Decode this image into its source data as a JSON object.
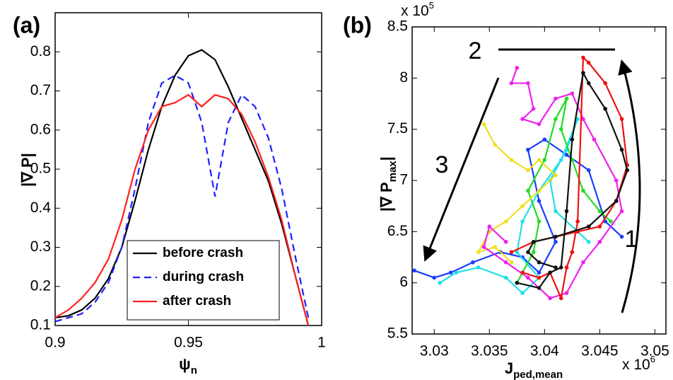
{
  "chart_data": [
    {
      "type": "line",
      "panel_label": "(a)",
      "xlabel": [
        "ψ",
        "n"
      ],
      "ylabel": "|∇ P|",
      "xlim": [
        0.9,
        1
      ],
      "ylim": [
        0.1,
        0.9
      ],
      "xticks": [
        0.9,
        0.95,
        1
      ],
      "yticks": [
        0.1,
        0.2,
        0.3,
        0.4,
        0.5,
        0.6,
        0.7,
        0.8
      ],
      "grid": false,
      "legend": "lower center",
      "x": [
        0.9,
        0.905,
        0.91,
        0.915,
        0.92,
        0.925,
        0.93,
        0.935,
        0.94,
        0.945,
        0.95,
        0.955,
        0.96,
        0.965,
        0.97,
        0.975,
        0.98,
        0.985,
        0.99,
        0.995
      ],
      "series": [
        {
          "name": "before crash",
          "color": "#000000",
          "linestyle": "solid",
          "values": [
            0.12,
            0.125,
            0.14,
            0.17,
            0.22,
            0.3,
            0.42,
            0.55,
            0.66,
            0.74,
            0.79,
            0.805,
            0.78,
            0.71,
            0.63,
            0.55,
            0.47,
            0.36,
            0.23,
            0.1
          ]
        },
        {
          "name": "during crash",
          "color": "#1f1fff",
          "linestyle": "dashed",
          "values": [
            0.11,
            0.12,
            0.13,
            0.16,
            0.21,
            0.3,
            0.45,
            0.62,
            0.72,
            0.74,
            0.72,
            0.62,
            0.43,
            0.62,
            0.69,
            0.66,
            0.58,
            0.45,
            0.28,
            0.12
          ]
        },
        {
          "name": "after crash",
          "color": "#ff2020",
          "linestyle": "solid",
          "values": [
            0.12,
            0.14,
            0.17,
            0.21,
            0.27,
            0.37,
            0.5,
            0.6,
            0.66,
            0.67,
            0.69,
            0.66,
            0.69,
            0.68,
            0.64,
            0.57,
            0.48,
            0.37,
            0.23,
            0.1
          ]
        }
      ]
    },
    {
      "type": "scatter-line",
      "panel_label": "(b)",
      "xlabel": [
        "J",
        "ped,mean"
      ],
      "ylabel": [
        "|∇ P",
        "max",
        "|"
      ],
      "x_multiplier": {
        "base": "x 10",
        "exponent": "6"
      },
      "y_multiplier": {
        "base": "x 10",
        "exponent": "5"
      },
      "xlim": [
        3.028,
        3.051
      ],
      "ylim": [
        5.5,
        8.5
      ],
      "xticks": [
        3.03,
        3.035,
        3.04,
        3.045,
        3.05
      ],
      "yticks": [
        5.5,
        6,
        6.5,
        7,
        7.5,
        8,
        8.5
      ],
      "grid": false,
      "annotations": [
        "1",
        "2",
        "3"
      ],
      "series": [
        {
          "color": "#1a3cff",
          "x": [
            3.0282,
            3.03,
            3.0315,
            3.0335,
            3.036,
            3.038,
            3.0395,
            3.041,
            3.0395,
            3.0385,
            3.04,
            3.042,
            3.044,
            3.0455,
            3.047
          ],
          "values": [
            6.12,
            6.05,
            6.1,
            6.2,
            6.3,
            6.25,
            6.1,
            6.4,
            6.8,
            7.3,
            7.4,
            7.25,
            7.1,
            6.6,
            6.45
          ]
        },
        {
          "color": "#20e0e8",
          "x": [
            3.0305,
            3.032,
            3.034,
            3.0365,
            3.038,
            3.0395,
            3.0375,
            3.038,
            3.0395,
            3.0415,
            3.043,
            3.042,
            3.0405,
            3.041,
            3.043,
            3.044
          ],
          "values": [
            6.0,
            6.1,
            6.15,
            6.05,
            5.9,
            6.05,
            6.3,
            6.6,
            6.9,
            7.2,
            7.6,
            7.3,
            7.0,
            6.7,
            6.5,
            6.4
          ]
        },
        {
          "color": "#22dd22",
          "x": [
            3.0375,
            3.039,
            3.0395,
            3.0385,
            3.04,
            3.041,
            3.042,
            3.0415,
            3.0425,
            3.0435,
            3.045,
            3.046
          ],
          "values": [
            6.0,
            6.3,
            6.6,
            6.9,
            7.2,
            7.6,
            7.8,
            7.5,
            7.2,
            6.9,
            6.7,
            6.6
          ]
        },
        {
          "color": "#f0e020",
          "x": [
            3.0345,
            3.0355,
            3.037,
            3.0385,
            3.0395,
            3.041,
            3.0395,
            3.038,
            3.0365,
            3.035,
            3.034,
            3.0355,
            3.037
          ],
          "values": [
            7.55,
            7.35,
            7.2,
            7.1,
            7.2,
            7.05,
            6.9,
            6.75,
            6.6,
            6.5,
            6.3,
            6.35,
            6.2
          ]
        },
        {
          "color": "#ee22ee",
          "x": [
            3.0375,
            3.037,
            3.0385,
            3.039,
            3.038,
            3.0395,
            3.041,
            3.0425,
            3.0435,
            3.0445,
            3.0465,
            3.047,
            3.045,
            3.0435,
            3.042,
            3.0405,
            3.0385,
            3.0365,
            3.0345,
            3.035,
            3.0365
          ],
          "values": [
            8.1,
            7.95,
            7.95,
            7.7,
            7.6,
            7.55,
            7.8,
            7.85,
            7.6,
            7.4,
            7.0,
            6.7,
            6.4,
            6.2,
            5.9,
            5.85,
            6.05,
            6.2,
            6.35,
            6.55,
            6.4
          ]
        },
        {
          "color": "#ee1111",
          "x": [
            3.038,
            3.0395,
            3.0405,
            3.0415,
            3.042,
            3.0425,
            3.043,
            3.0435,
            3.044,
            3.0455,
            3.047,
            3.0475,
            3.0465,
            3.045,
            3.043,
            3.041,
            3.039,
            3.037
          ],
          "values": [
            6.1,
            6.05,
            6.1,
            5.85,
            6.15,
            6.3,
            6.6,
            8.2,
            8.15,
            7.95,
            7.6,
            7.15,
            6.8,
            6.55,
            6.5,
            6.45,
            6.4,
            6.3
          ]
        },
        {
          "color": "#111111",
          "x": [
            3.0375,
            3.0395,
            3.0405,
            3.0415,
            3.042,
            3.0425,
            3.0435,
            3.044,
            3.0455,
            3.047,
            3.0475,
            3.0465,
            3.044,
            3.041,
            3.039,
            3.0385,
            3.0395,
            3.041
          ],
          "values": [
            6.0,
            5.95,
            6.1,
            6.15,
            6.7,
            7.4,
            8.05,
            7.95,
            7.7,
            7.3,
            7.1,
            6.8,
            6.55,
            6.45,
            6.4,
            6.3,
            6.2,
            6.15
          ]
        }
      ]
    }
  ]
}
